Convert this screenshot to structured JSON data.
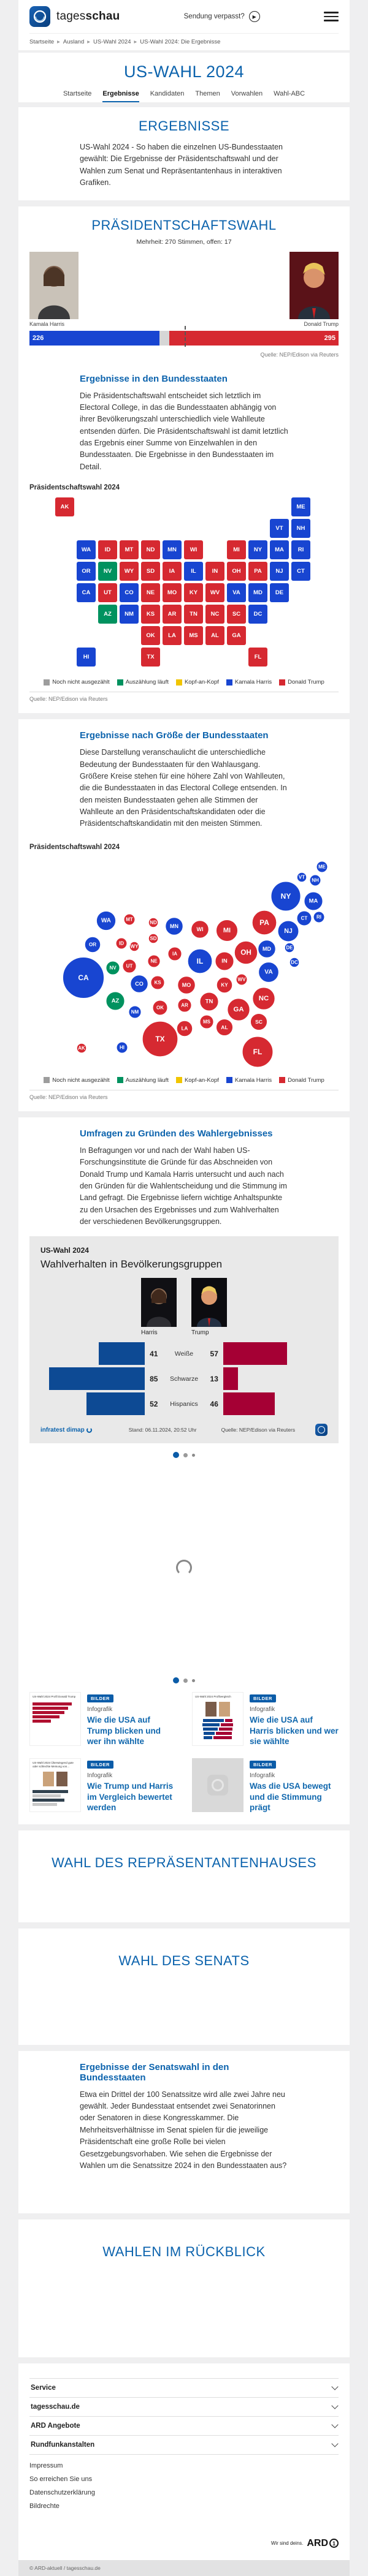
{
  "brand": {
    "wordmark_light": "tages",
    "wordmark_bold": "schau",
    "header_link": "Sendung verpasst?"
  },
  "breadcrumb": [
    "Startseite",
    "Ausland",
    "US-Wahl 2024",
    "US-Wahl 2024: Die Ergebnisse"
  ],
  "page_title": "US-WAHL 2024",
  "tabs": [
    {
      "label": "Startseite",
      "active": false
    },
    {
      "label": "Ergebnisse",
      "active": true
    },
    {
      "label": "Kandidaten",
      "active": false
    },
    {
      "label": "Themen",
      "active": false
    },
    {
      "label": "Vorwahlen",
      "active": false
    },
    {
      "label": "Wahl-ABC",
      "active": false
    }
  ],
  "colors": {
    "heading_blue": "#0c63ad",
    "harris_blue": "#1845d1",
    "trump_red": "#d62931",
    "counting_green": "#00925f",
    "tossup_yellow": "#f1c500",
    "uncounted_gray": "#9d9d9d",
    "panel_harris": "#0d4a94",
    "panel_trump": "#a50034"
  },
  "ergebnisse": {
    "title": "ERGEBNISSE",
    "intro": "US-Wahl 2024 - So haben die einzelnen US-Bundesstaaten gewählt: Die Ergebnisse der Präsidentschaftswahl und der Wahlen zum Senat und Repräsentantenhaus in interaktiven Grafiken."
  },
  "praesidentschaftswahl": {
    "title": "PRÄSIDENTSCHAFTSWAHL",
    "subtitle": "Mehrheit: 270 Stimmen, offen: 17",
    "harris_name": "Kamala Harris",
    "trump_name": "Donald Trump",
    "harris_votes": 226,
    "trump_votes": 295,
    "open_votes": 17,
    "majority": 270,
    "total": 538,
    "source": "Quelle: NEP/Edison via Reuters",
    "states_heading": "Ergebnisse in den Bundesstaaten",
    "states_text": "Die Präsidentschaftswahl entscheidet sich letztlich im Electoral College, in das die Bundesstaaten abhängig von ihrer Bevölkerungszahl unterschiedlich viele Wahlleute entsenden dürfen. Die Präsidentschaftswahl ist damit letztlich das Ergebnis einer Summe von Einzelwahlen in den Bundesstaaten. Die Ergebnisse in den Bundesstaaten im Detail.",
    "map_label": "Präsidentschaftswahl 2024"
  },
  "groesse": {
    "heading": "Ergebnisse nach Größe der Bundesstaaten",
    "text": "Diese Darstellung veranschaulicht die unterschiedliche Bedeutung der Bundesstaaten für den Wahlausgang. Größere Kreise stehen für eine höhere Zahl von Wahlleuten, die die Bundesstaaten in das Electoral College entsenden. In den meisten Bundesstaaten gehen alle Stimmen der Wahlleute an den Präsidentschaftskandidaten oder die Präsidentschaftskandidatin mit den meisten Stimmen.",
    "map_label": "Präsidentschaftswahl 2024"
  },
  "legend": [
    {
      "label": "Noch nicht ausgezählt",
      "color": "#9d9d9d"
    },
    {
      "label": "Auszählung läuft",
      "color": "#00925f"
    },
    {
      "label": "Kopf-an-Kopf",
      "color": "#f1c500"
    },
    {
      "label": "Kamala Harris",
      "color": "#1845d1"
    },
    {
      "label": "Donald Trump",
      "color": "#d62931"
    }
  ],
  "map_source": "Quelle: NEP/Edison via Reuters",
  "umfragen": {
    "heading": "Umfragen zu Gründen des Wahlergebnisses",
    "text": "In Befragungen vor und nach der Wahl haben US-Forschungsinstitute die Gründe für das Abschneiden von Donald Trump und Kamala Harris untersucht und auch nach den Gründen für die Wahlentscheidung und die Stimmung im Land gefragt. Die Ergebnisse liefern wichtige Anhaltspunkte zu den Ursachen des Ergebnisses und zum Wahlverhalten der verschiedenen Bevölkerungsgruppen."
  },
  "panel": {
    "kicker": "US-Wahl 2024",
    "title": "Wahlverhalten in Bevölkerungsgruppen",
    "harris_label": "Harris",
    "trump_label": "Trump",
    "stand": "Stand:  06.11.2024, 20:52 Uhr",
    "source": "Quelle: NEP/Edison via Reuters",
    "credit": "infratest dimap"
  },
  "teasers": [
    {
      "badge": "BILDER",
      "kicker": "Infografik",
      "title": "Wie die USA auf Trump blicken und wer ihn wählte",
      "thumb_caption": "US-Wahl 2024 Profil Donald Trump",
      "thumb_kind": "red-bars"
    },
    {
      "badge": "BILDER",
      "kicker": "Infografik",
      "title": "Wie die USA auf Harris blicken und wer sie wählte",
      "thumb_caption": "US-Wahl 2024 Profilvergleich",
      "thumb_kind": "pair-bars"
    },
    {
      "badge": "BILDER",
      "kicker": "Infografik",
      "title": "Wie Trump und Harris im Vergleich bewertet werden",
      "thumb_caption": "US-Wahl 2024 Überwiegend gute oder schlechte Meinung von...",
      "thumb_kind": "compare"
    },
    {
      "badge": "BILDER",
      "kicker": "Infografik",
      "title": "Was die USA bewegt und die Stimmung prägt",
      "thumb_caption": "",
      "thumb_kind": "placeholder"
    }
  ],
  "repr_heading": "WAHL DES REPRÄSENTANTENHAUSES",
  "senat_heading": "WAHL DES SENATS",
  "senatswahl": {
    "heading": "Ergebnisse der Senatswahl in den Bundesstaaten",
    "text": "Etwa ein Drittel der 100 Senatssitze wird alle zwei Jahre neu gewählt. Jeder Bundesstaat entsendet zwei Senatorinnen oder Senatoren in diese Kongresskammer. Die Mehrheitsverhältnisse im Senat spielen für die jeweilige Präsidentschaft eine große Rolle bei vielen Gesetzgebungsvorhaben. Wie sehen die Ergebnisse der Wahlen um die Senatssitze 2024 in den Bundesstaaten aus?"
  },
  "rueckblick_heading": "WAHLEN IM RÜCKBLICK",
  "footer": {
    "accordions": [
      "Service",
      "tagesschau.de",
      "ARD Angebote",
      "Rundfunkanstalten"
    ],
    "links": [
      "Impressum",
      "So erreichen Sie uns",
      "Datenschutzerklärung",
      "Bildrechte"
    ],
    "tagline": "Wir sind deins.",
    "ard": "ARD",
    "copyright": "© ARD-aktuell / tagesschau.de"
  },
  "chart_data": [
    {
      "type": "bar",
      "title": "Electoral College Ergebnis",
      "categories": [
        "Kamala Harris",
        "offen",
        "Donald Trump"
      ],
      "values": [
        226,
        17,
        295
      ],
      "majority_line": 270,
      "total": 538,
      "source": "Quelle: NEP/Edison via Reuters"
    },
    {
      "type": "heatmap",
      "title": "Präsidentschaftswahl 2024 — Ergebnisse in den Bundesstaaten",
      "legend_position": "bottom",
      "results": {
        "harris": [
          "WA",
          "OR",
          "CA",
          "HI",
          "CO",
          "NM",
          "MN",
          "IL",
          "VA",
          "MD",
          "DE",
          "NJ",
          "NY",
          "CT",
          "RI",
          "MA",
          "VT",
          "NH",
          "ME",
          "DC"
        ],
        "trump": [
          "AK",
          "ID",
          "MT",
          "WY",
          "UT",
          "ND",
          "SD",
          "NE",
          "KS",
          "OK",
          "TX",
          "IA",
          "MO",
          "AR",
          "LA",
          "WI",
          "MI",
          "IN",
          "OH",
          "KY",
          "TN",
          "MS",
          "AL",
          "GA",
          "FL",
          "SC",
          "NC",
          "WV",
          "PA"
        ],
        "counting": [
          "NV",
          "AZ"
        ]
      },
      "tiles": [
        {
          "abbr": "AK",
          "col": 0,
          "row": 0
        },
        {
          "abbr": "ME",
          "col": 11,
          "row": 0
        },
        {
          "abbr": "VT",
          "col": 10,
          "row": 1
        },
        {
          "abbr": "NH",
          "col": 11,
          "row": 1
        },
        {
          "abbr": "WA",
          "col": 1,
          "row": 2
        },
        {
          "abbr": "ID",
          "col": 2,
          "row": 2
        },
        {
          "abbr": "MT",
          "col": 3,
          "row": 2
        },
        {
          "abbr": "ND",
          "col": 4,
          "row": 2
        },
        {
          "abbr": "MN",
          "col": 5,
          "row": 2
        },
        {
          "abbr": "WI",
          "col": 6,
          "row": 2
        },
        {
          "abbr": "MI",
          "col": 8,
          "row": 2
        },
        {
          "abbr": "NY",
          "col": 9,
          "row": 2
        },
        {
          "abbr": "MA",
          "col": 10,
          "row": 2
        },
        {
          "abbr": "RI",
          "col": 11,
          "row": 2
        },
        {
          "abbr": "OR",
          "col": 1,
          "row": 3
        },
        {
          "abbr": "NV",
          "col": 2,
          "row": 3
        },
        {
          "abbr": "WY",
          "col": 3,
          "row": 3
        },
        {
          "abbr": "SD",
          "col": 4,
          "row": 3
        },
        {
          "abbr": "IA",
          "col": 5,
          "row": 3
        },
        {
          "abbr": "IL",
          "col": 6,
          "row": 3
        },
        {
          "abbr": "IN",
          "col": 7,
          "row": 3
        },
        {
          "abbr": "OH",
          "col": 8,
          "row": 3
        },
        {
          "abbr": "PA",
          "col": 9,
          "row": 3
        },
        {
          "abbr": "NJ",
          "col": 10,
          "row": 3
        },
        {
          "abbr": "CT",
          "col": 11,
          "row": 3
        },
        {
          "abbr": "CA",
          "col": 1,
          "row": 4
        },
        {
          "abbr": "UT",
          "col": 2,
          "row": 4
        },
        {
          "abbr": "CO",
          "col": 3,
          "row": 4
        },
        {
          "abbr": "NE",
          "col": 4,
          "row": 4
        },
        {
          "abbr": "MO",
          "col": 5,
          "row": 4
        },
        {
          "abbr": "KY",
          "col": 6,
          "row": 4
        },
        {
          "abbr": "WV",
          "col": 7,
          "row": 4
        },
        {
          "abbr": "VA",
          "col": 8,
          "row": 4
        },
        {
          "abbr": "MD",
          "col": 9,
          "row": 4
        },
        {
          "abbr": "DE",
          "col": 10,
          "row": 4
        },
        {
          "abbr": "AZ",
          "col": 2,
          "row": 5
        },
        {
          "abbr": "NM",
          "col": 3,
          "row": 5
        },
        {
          "abbr": "KS",
          "col": 4,
          "row": 5
        },
        {
          "abbr": "AR",
          "col": 5,
          "row": 5
        },
        {
          "abbr": "TN",
          "col": 6,
          "row": 5
        },
        {
          "abbr": "NC",
          "col": 7,
          "row": 5
        },
        {
          "abbr": "SC",
          "col": 8,
          "row": 5
        },
        {
          "abbr": "DC",
          "col": 9,
          "row": 5
        },
        {
          "abbr": "OK",
          "col": 4,
          "row": 6
        },
        {
          "abbr": "LA",
          "col": 5,
          "row": 6
        },
        {
          "abbr": "MS",
          "col": 6,
          "row": 6
        },
        {
          "abbr": "AL",
          "col": 7,
          "row": 6
        },
        {
          "abbr": "GA",
          "col": 8,
          "row": 6
        },
        {
          "abbr": "HI",
          "col": 1,
          "row": 7
        },
        {
          "abbr": "TX",
          "col": 4,
          "row": 7
        },
        {
          "abbr": "FL",
          "col": 9,
          "row": 7
        }
      ]
    },
    {
      "type": "scatter",
      "title": "Präsidentschaftswahl 2024 — Ergebnisse nach Größe der Bundesstaaten (Wahlleute)",
      "bubbles": [
        {
          "abbr": "ME",
          "ev": 4,
          "x": 477,
          "y": 16
        },
        {
          "abbr": "VT",
          "ev": 3,
          "x": 444,
          "y": 33
        },
        {
          "abbr": "NH",
          "ev": 4,
          "x": 466,
          "y": 38
        },
        {
          "abbr": "NY",
          "ev": 28,
          "x": 418,
          "y": 64
        },
        {
          "abbr": "MA",
          "ev": 11,
          "x": 463,
          "y": 72
        },
        {
          "abbr": "WA",
          "ev": 12,
          "x": 125,
          "y": 104
        },
        {
          "abbr": "MT",
          "ev": 4,
          "x": 163,
          "y": 102
        },
        {
          "abbr": "ND",
          "ev": 3,
          "x": 202,
          "y": 107
        },
        {
          "abbr": "MN",
          "ev": 10,
          "x": 236,
          "y": 113
        },
        {
          "abbr": "WI",
          "ev": 10,
          "x": 278,
          "y": 118
        },
        {
          "abbr": "MI",
          "ev": 15,
          "x": 322,
          "y": 120
        },
        {
          "abbr": "PA",
          "ev": 19,
          "x": 383,
          "y": 107
        },
        {
          "abbr": "NJ",
          "ev": 14,
          "x": 422,
          "y": 121
        },
        {
          "abbr": "CT",
          "ev": 7,
          "x": 448,
          "y": 100
        },
        {
          "abbr": "RI",
          "ev": 4,
          "x": 472,
          "y": 98
        },
        {
          "abbr": "OR",
          "ev": 8,
          "x": 103,
          "y": 143
        },
        {
          "abbr": "ID",
          "ev": 4,
          "x": 150,
          "y": 141
        },
        {
          "abbr": "WY",
          "ev": 3,
          "x": 171,
          "y": 146
        },
        {
          "abbr": "SD",
          "ev": 3,
          "x": 202,
          "y": 133
        },
        {
          "abbr": "IA",
          "ev": 6,
          "x": 237,
          "y": 158
        },
        {
          "abbr": "NE",
          "ev": 5,
          "x": 203,
          "y": 170
        },
        {
          "abbr": "IL",
          "ev": 19,
          "x": 278,
          "y": 170
        },
        {
          "abbr": "IN",
          "ev": 11,
          "x": 318,
          "y": 170
        },
        {
          "abbr": "OH",
          "ev": 17,
          "x": 353,
          "y": 156
        },
        {
          "abbr": "MD",
          "ev": 10,
          "x": 387,
          "y": 150
        },
        {
          "abbr": "DE",
          "ev": 3,
          "x": 424,
          "y": 148
        },
        {
          "abbr": "DC",
          "ev": 3,
          "x": 432,
          "y": 172
        },
        {
          "abbr": "WV",
          "ev": 4,
          "x": 346,
          "y": 200
        },
        {
          "abbr": "VA",
          "ev": 13,
          "x": 390,
          "y": 188
        },
        {
          "abbr": "CA",
          "ev": 54,
          "x": 88,
          "y": 197
        },
        {
          "abbr": "NV",
          "ev": 6,
          "x": 136,
          "y": 181
        },
        {
          "abbr": "UT",
          "ev": 6,
          "x": 163,
          "y": 178
        },
        {
          "abbr": "CO",
          "ev": 10,
          "x": 179,
          "y": 207
        },
        {
          "abbr": "KS",
          "ev": 6,
          "x": 209,
          "y": 205
        },
        {
          "abbr": "MO",
          "ev": 10,
          "x": 256,
          "y": 209
        },
        {
          "abbr": "KY",
          "ev": 8,
          "x": 318,
          "y": 209
        },
        {
          "abbr": "AZ",
          "ev": 11,
          "x": 140,
          "y": 235
        },
        {
          "abbr": "NM",
          "ev": 5,
          "x": 172,
          "y": 253
        },
        {
          "abbr": "OK",
          "ev": 7,
          "x": 213,
          "y": 246
        },
        {
          "abbr": "AR",
          "ev": 6,
          "x": 253,
          "y": 242
        },
        {
          "abbr": "TN",
          "ev": 11,
          "x": 293,
          "y": 236
        },
        {
          "abbr": "NC",
          "ev": 16,
          "x": 382,
          "y": 231
        },
        {
          "abbr": "GA",
          "ev": 16,
          "x": 341,
          "y": 249
        },
        {
          "abbr": "SC",
          "ev": 9,
          "x": 374,
          "y": 269
        },
        {
          "abbr": "MS",
          "ev": 6,
          "x": 289,
          "y": 269
        },
        {
          "abbr": "AL",
          "ev": 9,
          "x": 318,
          "y": 278
        },
        {
          "abbr": "LA",
          "ev": 8,
          "x": 253,
          "y": 280
        },
        {
          "abbr": "TX",
          "ev": 40,
          "x": 213,
          "y": 297
        },
        {
          "abbr": "AK",
          "ev": 3,
          "x": 85,
          "y": 312
        },
        {
          "abbr": "HI",
          "ev": 4,
          "x": 151,
          "y": 311
        },
        {
          "abbr": "FL",
          "ev": 30,
          "x": 372,
          "y": 318
        }
      ]
    },
    {
      "type": "bar",
      "title": "Wahlverhalten in Bevölkerungsgruppen",
      "categories": [
        "Weiße",
        "Schwarze",
        "Hispanics"
      ],
      "series": [
        {
          "name": "Harris",
          "values": [
            41,
            85,
            52
          ]
        },
        {
          "name": "Trump",
          "values": [
            57,
            13,
            46
          ]
        }
      ],
      "xlim": [
        0,
        100
      ],
      "stand": "Stand:  06.11.2024, 20:52 Uhr",
      "source": "Quelle: NEP/Edison via Reuters"
    }
  ]
}
